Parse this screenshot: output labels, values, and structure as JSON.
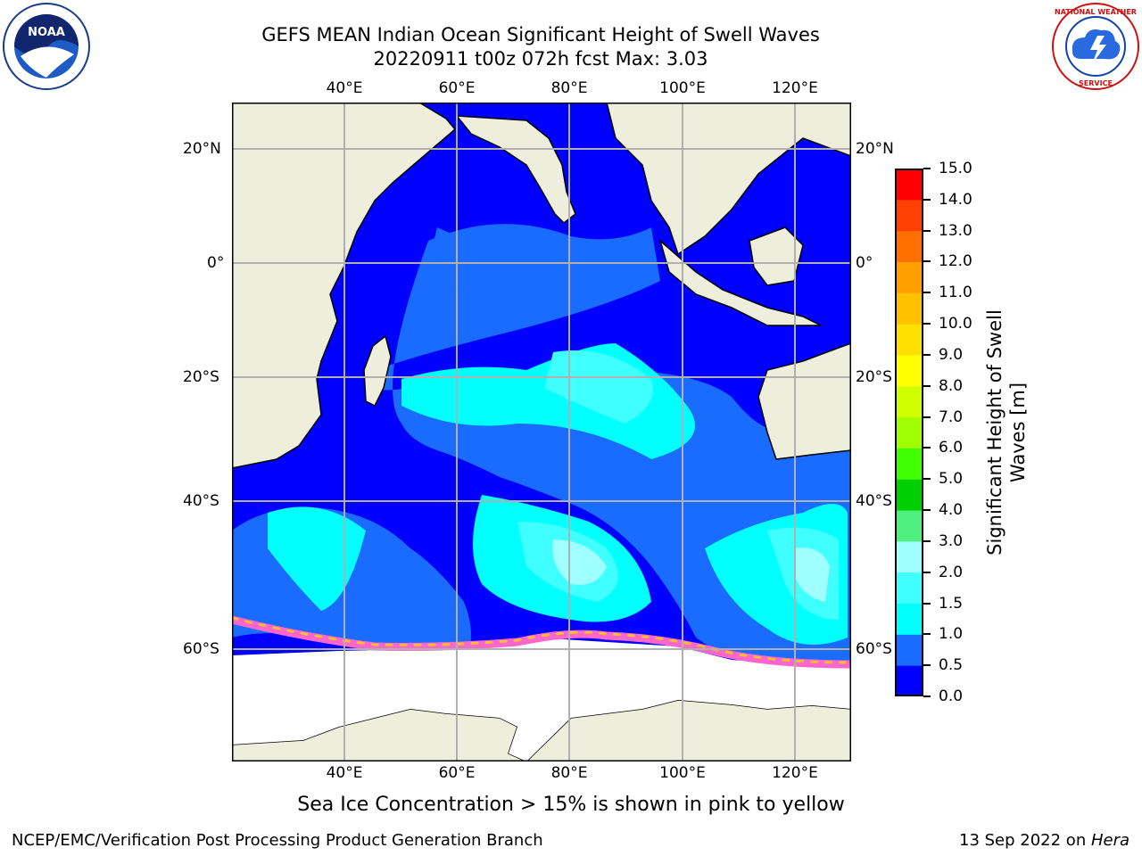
{
  "title": {
    "line1": "GEFS MEAN Indian Ocean Significant Height of Swell Waves",
    "line2": "20220911 t00z 072h fcst   Max: 3.03"
  },
  "axes": {
    "lon_labels": [
      "40°E",
      "60°E",
      "80°E",
      "100°E",
      "120°E"
    ],
    "lat_labels": [
      "20°N",
      "0°",
      "20°S",
      "40°S",
      "60°S"
    ]
  },
  "colorbar": {
    "label_line1": "Significant Height of Swell",
    "label_line2": "Waves [m]",
    "ticks": [
      "0.0",
      "0.5",
      "1.0",
      "1.5",
      "2.0",
      "3.0",
      "4.0",
      "5.0",
      "6.0",
      "7.0",
      "8.0",
      "9.0",
      "10.0",
      "11.0",
      "12.0",
      "13.0",
      "14.0",
      "15.0"
    ],
    "colors": [
      "#0000ff",
      "#1a6bff",
      "#00ffff",
      "#40ffff",
      "#a0ffff",
      "#50f080",
      "#00d000",
      "#40ff00",
      "#a0ff00",
      "#d0ff00",
      "#ffff00",
      "#ffe000",
      "#ffc000",
      "#ffa000",
      "#ff7000",
      "#ff4000",
      "#ff0000"
    ]
  },
  "subtitle": "Sea Ice Concentration > 15% is shown in pink to yellow",
  "footer": {
    "left": "NCEP/EMC/Verification Post Processing Product Generation Branch",
    "right_prefix": "13 Sep 2022 on ",
    "right_host": "Hera"
  },
  "logos": {
    "left_text": "NOAA",
    "right_text": "NATIONAL WEATHER SERVICE"
  }
}
